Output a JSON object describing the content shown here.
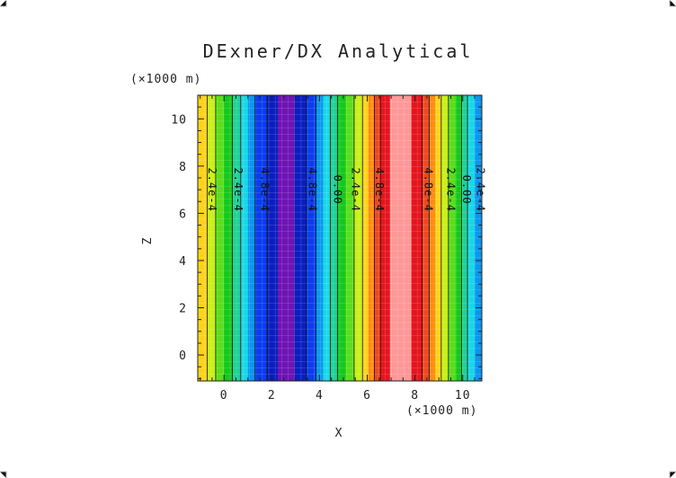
{
  "chart_data": {
    "type": "heatmap",
    "title": "DExner/DX Analytical",
    "xlabel": "X",
    "ylabel": "Z",
    "x_unit": "(×1000 m)",
    "y_unit": "(×1000 m)",
    "xlim": [
      -1.1,
      10.8
    ],
    "ylim": [
      -1.1,
      11.0
    ],
    "x_ticks": [
      0,
      2,
      4,
      6,
      8,
      10
    ],
    "y_ticks": [
      0,
      2,
      4,
      6,
      8,
      10
    ],
    "x_tick_labels": [
      "0",
      "2",
      "4",
      "6",
      "8",
      "10"
    ],
    "y_tick_labels": [
      "0",
      "2",
      "4",
      "6",
      "8",
      "10"
    ],
    "bands": [
      {
        "x0": -1.1,
        "x1": -0.7,
        "color": "#ffd21a"
      },
      {
        "x0": -0.7,
        "x1": -0.35,
        "color": "#c8f018"
      },
      {
        "x0": -0.35,
        "x1": 0.0,
        "color": "#5ade1c"
      },
      {
        "x0": 0.0,
        "x1": 0.35,
        "color": "#14c81e"
      },
      {
        "x0": 0.35,
        "x1": 0.7,
        "color": "#1ed296"
      },
      {
        "x0": 0.7,
        "x1": 1.0,
        "color": "#19d7e6"
      },
      {
        "x0": 1.0,
        "x1": 1.3,
        "color": "#0a96f0"
      },
      {
        "x0": 1.3,
        "x1": 1.8,
        "color": "#0a3cf0"
      },
      {
        "x0": 1.8,
        "x1": 2.25,
        "color": "#0a1ec0"
      },
      {
        "x0": 2.25,
        "x1": 2.95,
        "color": "#6e14b4"
      },
      {
        "x0": 2.95,
        "x1": 3.45,
        "color": "#0a1ec0"
      },
      {
        "x0": 3.45,
        "x1": 3.85,
        "color": "#0a3cf0"
      },
      {
        "x0": 3.85,
        "x1": 4.15,
        "color": "#0a96f0"
      },
      {
        "x0": 4.15,
        "x1": 4.45,
        "color": "#19d7e6"
      },
      {
        "x0": 4.45,
        "x1": 4.75,
        "color": "#1ed296"
      },
      {
        "x0": 4.75,
        "x1": 5.1,
        "color": "#14c81e"
      },
      {
        "x0": 5.1,
        "x1": 5.45,
        "color": "#5ade1c"
      },
      {
        "x0": 5.45,
        "x1": 5.8,
        "color": "#c8f018"
      },
      {
        "x0": 5.8,
        "x1": 6.05,
        "color": "#ffd21a"
      },
      {
        "x0": 6.05,
        "x1": 6.3,
        "color": "#ff8c14"
      },
      {
        "x0": 6.3,
        "x1": 6.55,
        "color": "#f0461e"
      },
      {
        "x0": 6.55,
        "x1": 6.95,
        "color": "#e6141e"
      },
      {
        "x0": 6.95,
        "x1": 7.85,
        "color": "#ff9898"
      },
      {
        "x0": 7.85,
        "x1": 8.3,
        "color": "#e6141e"
      },
      {
        "x0": 8.3,
        "x1": 8.6,
        "color": "#f0461e"
      },
      {
        "x0": 8.6,
        "x1": 8.85,
        "color": "#ff8c14"
      },
      {
        "x0": 8.85,
        "x1": 9.1,
        "color": "#ffd21a"
      },
      {
        "x0": 9.1,
        "x1": 9.4,
        "color": "#c8f018"
      },
      {
        "x0": 9.4,
        "x1": 9.7,
        "color": "#5ade1c"
      },
      {
        "x0": 9.7,
        "x1": 9.95,
        "color": "#14c81e"
      },
      {
        "x0": 9.95,
        "x1": 10.2,
        "color": "#1ed296"
      },
      {
        "x0": 10.2,
        "x1": 10.5,
        "color": "#19d7e6"
      },
      {
        "x0": 10.5,
        "x1": 10.8,
        "color": "#0a96f0"
      }
    ],
    "contour_lines_x": [
      -0.7,
      -0.35,
      0.35,
      0.7,
      1.3,
      1.8,
      3.45,
      3.85,
      4.45,
      4.75,
      5.45,
      5.8,
      6.3,
      6.55,
      8.3,
      8.6,
      9.1,
      9.4,
      9.95,
      10.2
    ],
    "contour_labels": [
      {
        "text": "2.4e-4",
        "x": -0.65,
        "y": 7.0
      },
      {
        "text": "2.4e-4",
        "x": 0.45,
        "y": 7.0
      },
      {
        "text": "4.8e-4",
        "x": 1.55,
        "y": 7.0
      },
      {
        "text": "4.8e-4",
        "x": 3.55,
        "y": 7.0
      },
      {
        "text": "0.00",
        "x": 4.6,
        "y": 7.0
      },
      {
        "text": "2.4e-4",
        "x": 5.35,
        "y": 7.0
      },
      {
        "text": "4.8e-4",
        "x": 6.35,
        "y": 7.0
      },
      {
        "text": "4.8e-4",
        "x": 8.4,
        "y": 7.0
      },
      {
        "text": "2.4e-4",
        "x": 9.35,
        "y": 7.0
      },
      {
        "text": "0.00",
        "x": 10.0,
        "y": 7.0
      },
      {
        "text": "2.4e-4",
        "x": 10.6,
        "y": 7.0
      }
    ],
    "grid": true,
    "legend": "none"
  }
}
